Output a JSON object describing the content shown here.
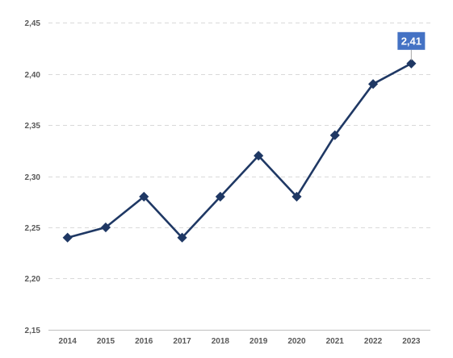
{
  "chart_data": {
    "type": "line",
    "title": "",
    "xlabel": "",
    "ylabel": "",
    "x": [
      "2014",
      "2015",
      "2016",
      "2017",
      "2018",
      "2019",
      "2020",
      "2021",
      "2022",
      "2023"
    ],
    "series": [
      {
        "values": [
          2.24,
          2.25,
          2.28,
          2.24,
          2.28,
          2.32,
          2.28,
          2.34,
          2.39,
          2.41
        ],
        "color": "#1f3864",
        "marker": "diamond"
      }
    ],
    "ylim": [
      2.15,
      2.45
    ],
    "yticks": [
      2.15,
      2.2,
      2.25,
      2.3,
      2.35,
      2.4,
      2.45
    ],
    "ytick_labels": [
      "2,15",
      "2,20",
      "2,25",
      "2,30",
      "2,35",
      "2,40",
      "2,45"
    ],
    "grid": true,
    "legend": "none",
    "data_labels": [
      {
        "index": 9,
        "text": "2,41",
        "background": "#4472c4"
      }
    ]
  }
}
